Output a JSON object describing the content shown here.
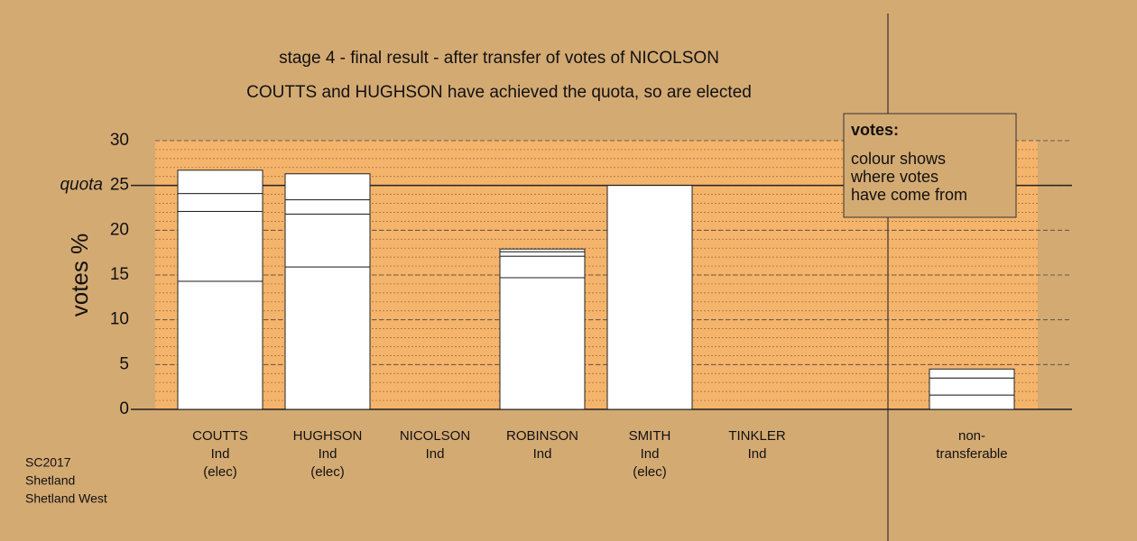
{
  "chart_data": {
    "type": "stacked-bar",
    "title": "stage 4 - final result - after transfer of votes of NICOLSON",
    "subtitle": "COUTTS and HUGHSON have achieved the quota, so are elected",
    "y_label": "votes %",
    "categories": [
      [
        "COUTTS",
        "Ind",
        "(elec)"
      ],
      [
        "HUGHSON",
        "Ind",
        "(elec)"
      ],
      [
        "NICOLSON",
        "Ind"
      ],
      [
        "ROBINSON",
        "Ind"
      ],
      [
        "SMITH",
        "Ind",
        "(elec)"
      ],
      [
        "TINKLER",
        "Ind"
      ],
      [
        "non-",
        "transferable"
      ]
    ],
    "series": [
      {
        "color": "#ffffff",
        "values": [
          14.3,
          15.9,
          0,
          14.7,
          25,
          0,
          1.6
        ]
      },
      {
        "color": "#ffffff",
        "values": [
          7.8,
          5.9,
          null,
          2.4,
          null,
          null,
          1.9
        ]
      },
      {
        "color": "#ffffff",
        "values": [
          2.0,
          1.6,
          null,
          0.5,
          null,
          null,
          1.0
        ]
      },
      {
        "color": "#ffffff",
        "values": [
          2.6,
          2.9,
          null,
          0.3,
          null,
          null,
          null
        ]
      }
    ],
    "ylim": [
      0,
      30
    ],
    "yticks": [
      0,
      5,
      10,
      15,
      20,
      25,
      30
    ],
    "minor_grid_step": 1,
    "grid": true,
    "quota": {
      "value": 25,
      "label": "quota"
    },
    "legend": {
      "title": "votes:",
      "lines": [
        "colour shows",
        "where votes",
        "have come from"
      ]
    },
    "footer": [
      "SC2017",
      "Shetland",
      "Shetland West"
    ],
    "background": "#d4aa73",
    "plot_color": "#f5b46b"
  }
}
